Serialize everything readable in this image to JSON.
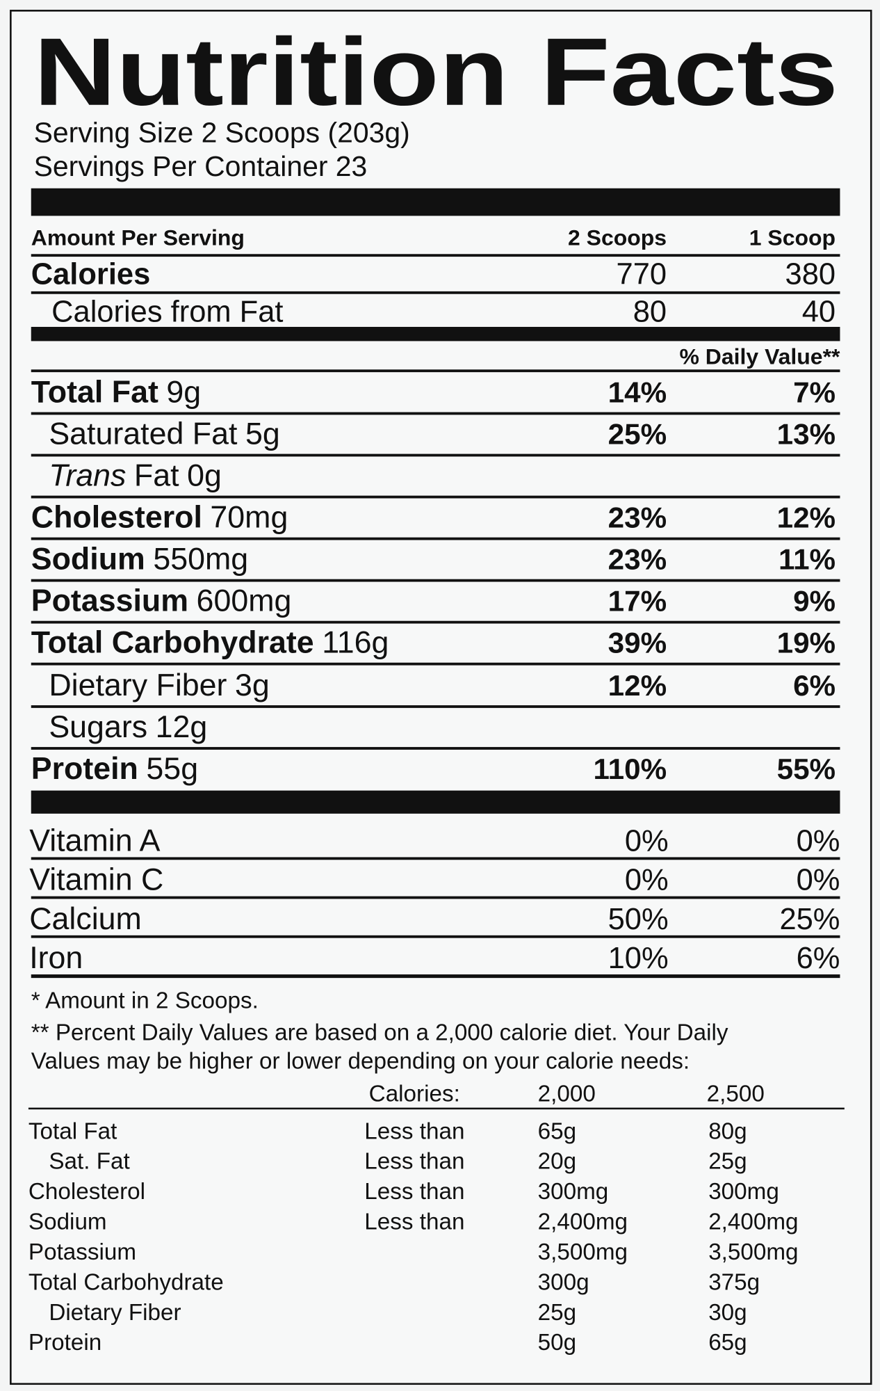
{
  "header": {
    "title": "Nutrition Facts",
    "serving_size": "Serving Size 2 Scoops (203g)",
    "servings_per_container": "Servings Per Container 23"
  },
  "columns": {
    "amount_per_serving": "Amount Per Serving",
    "col1": "2 Scoops",
    "col2": "1 Scoop"
  },
  "calories": {
    "label": "Calories",
    "col1": "770",
    "col2": "380"
  },
  "calories_from_fat": {
    "label": "Calories from Fat",
    "col1": "80",
    "col2": "40"
  },
  "daily_value_heading": "% Daily Value**",
  "nutrients": [
    {
      "name": "Total Fat",
      "amount": "9g",
      "col1": "14%",
      "col2": "7%",
      "bold": true
    },
    {
      "name": "Saturated Fat",
      "amount": "5g",
      "col1": "25%",
      "col2": "13%",
      "indent": true
    },
    {
      "name_italic": "Trans",
      "name": "Fat",
      "amount": "0g",
      "indent": true
    },
    {
      "name": "Cholesterol",
      "amount": "70mg",
      "col1": "23%",
      "col2": "12%",
      "bold": true
    },
    {
      "name": "Sodium",
      "amount": "550mg",
      "col1": "23%",
      "col2": "11%",
      "bold": true
    },
    {
      "name": "Potassium",
      "amount": "600mg",
      "col1": "17%",
      "col2": "9%",
      "bold": true
    },
    {
      "name": "Total Carbohydrate",
      "amount": "116g",
      "col1": "39%",
      "col2": "19%",
      "bold": true
    },
    {
      "name": "Dietary Fiber",
      "amount": "3g",
      "col1": "12%",
      "col2": "6%",
      "indent": true
    },
    {
      "name": "Sugars",
      "amount": "12g",
      "indent": true
    },
    {
      "name": "Protein",
      "amount": "55g",
      "col1": "110%",
      "col2": "55%",
      "bold": true
    }
  ],
  "vitamins": [
    {
      "name": "Vitamin A",
      "col1": "0%",
      "col2": "0%"
    },
    {
      "name": "Vitamin C",
      "col1": "0%",
      "col2": "0%"
    },
    {
      "name": "Calcium",
      "col1": "50%",
      "col2": "25%"
    },
    {
      "name": "Iron",
      "col1": "10%",
      "col2": "6%"
    }
  ],
  "footnotes": [
    "* Amount in 2 Scoops.",
    "** Percent Daily Values are based on a 2,000 calorie diet. Your Daily",
    "Values may be higher or lower depending on your calorie needs:"
  ],
  "reference_table": {
    "header": [
      "Calories:",
      "2,000",
      "2,500"
    ],
    "rows": [
      {
        "nutrient": "Total Fat",
        "limit": "Less than",
        "v2000": "65g",
        "v2500": "80g"
      },
      {
        "nutrient": "Sat. Fat",
        "limit": "Less than",
        "v2000": "20g",
        "v2500": "25g",
        "indent": true
      },
      {
        "nutrient": "Cholesterol",
        "limit": "Less than",
        "v2000": "300mg",
        "v2500": "300mg"
      },
      {
        "nutrient": "Sodium",
        "limit": "Less than",
        "v2000": "2,400mg",
        "v2500": "2,400mg"
      },
      {
        "nutrient": "Potassium",
        "v2000": "3,500mg",
        "v2500": "3,500mg"
      },
      {
        "nutrient": "Total Carbohydrate",
        "v2000": "300g",
        "v2500": "375g"
      },
      {
        "nutrient": "Dietary Fiber",
        "v2000": "25g",
        "v2500": "30g",
        "indent": true
      },
      {
        "nutrient": "Protein",
        "v2000": "50g",
        "v2500": "65g"
      }
    ]
  }
}
